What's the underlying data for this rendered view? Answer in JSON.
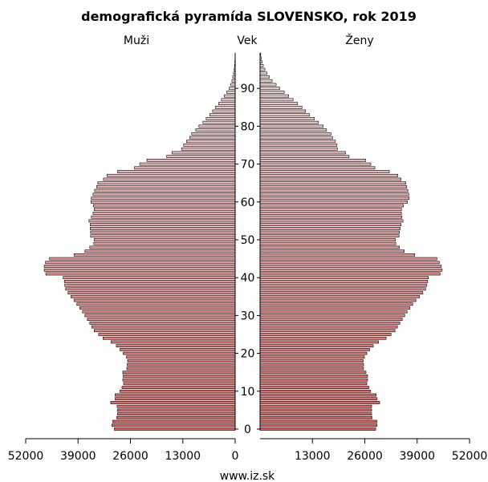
{
  "chart_data": {
    "type": "bar",
    "orientation": "horizontal-pyramid",
    "title": "demografická pyramída SLOVENSKO, rok 2019",
    "left_label": "Muži",
    "center_label": "Vek",
    "right_label": "Ženy",
    "source": "www.iz.sk",
    "x_ticks": [
      52000,
      39000,
      26000,
      13000,
      0,
      13000,
      26000,
      39000,
      52000
    ],
    "age_ticks": [
      0,
      10,
      20,
      30,
      40,
      50,
      60,
      70,
      80,
      90
    ],
    "xlim": [
      0,
      52000
    ],
    "age_range": [
      0,
      99
    ],
    "colors": {
      "male_young": "#e0615f",
      "male_old": "#ecdada",
      "female_young": "#de5c5a",
      "female_old": "#ecdada",
      "outline": "#000000"
    },
    "series": [
      {
        "name": "Muži",
        "values": [
          30000,
          30600,
          30400,
          29400,
          29200,
          29200,
          29300,
          30900,
          29800,
          29800,
          28600,
          28100,
          27700,
          27900,
          27800,
          27900,
          26900,
          26800,
          26700,
          27000,
          27800,
          28600,
          29500,
          30800,
          32800,
          33900,
          35000,
          35600,
          36100,
          36700,
          37300,
          37900,
          38600,
          39300,
          40000,
          40800,
          41500,
          42100,
          42300,
          42400,
          42700,
          47000,
          47400,
          47400,
          47100,
          46100,
          40000,
          37300,
          36100,
          35100,
          35000,
          35900,
          35900,
          36000,
          36000,
          36300,
          35700,
          35300,
          35000,
          35200,
          35800,
          35700,
          35300,
          34900,
          34400,
          34100,
          32700,
          31800,
          29200,
          25000,
          23700,
          21900,
          17000,
          15700,
          13300,
          12800,
          12100,
          11300,
          10800,
          9800,
          9000,
          8000,
          7200,
          6300,
          5600,
          4900,
          4100,
          3400,
          2700,
          2100,
          1500,
          1100,
          800,
          600,
          400,
          250,
          150,
          90,
          50,
          30
        ]
      },
      {
        "name": "Ženy",
        "values": [
          28700,
          29000,
          29000,
          27800,
          27700,
          27700,
          27700,
          29700,
          29000,
          28800,
          27400,
          27000,
          26500,
          26700,
          26700,
          26300,
          25700,
          25700,
          25600,
          25900,
          26500,
          27200,
          28100,
          29400,
          31300,
          32500,
          33500,
          34100,
          34700,
          35300,
          35900,
          36500,
          37200,
          37900,
          38700,
          39600,
          40400,
          41100,
          41400,
          41600,
          41800,
          44700,
          45200,
          45000,
          44500,
          43900,
          38400,
          35800,
          34600,
          33700,
          33600,
          34500,
          34600,
          34800,
          35000,
          35500,
          35200,
          35100,
          35100,
          35600,
          36600,
          37000,
          36900,
          36700,
          36400,
          36200,
          35000,
          34200,
          32100,
          28500,
          27500,
          26200,
          22100,
          21200,
          19200,
          19100,
          18700,
          18000,
          17600,
          16500,
          15700,
          14500,
          13500,
          12300,
          11300,
          10400,
          9300,
          8200,
          7100,
          6000,
          4900,
          4000,
          3000,
          2300,
          1700,
          1200,
          800,
          500,
          300,
          180
        ]
      }
    ]
  }
}
